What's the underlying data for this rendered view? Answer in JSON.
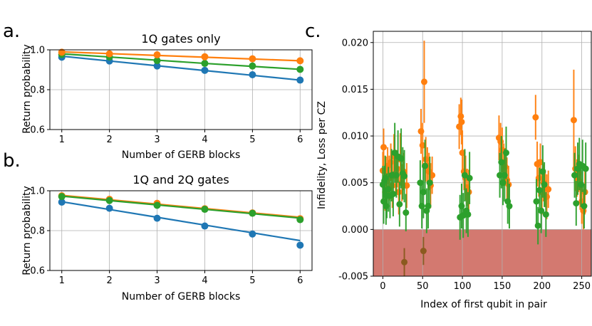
{
  "colors": {
    "blue": "#1f77b4",
    "orange": "#ff7f0e",
    "green": "#2ca02c",
    "grid": "#b0b0b0",
    "negative_region": "#c8574c",
    "neg_point": "#8b5a1f"
  },
  "chart_data": [
    {
      "id": "a",
      "letter": "a.",
      "type": "line",
      "title": "1Q gates only",
      "xlabel": "Number of GERB blocks",
      "ylabel": "Return probability",
      "x": [
        1,
        2,
        3,
        4,
        5,
        6
      ],
      "xlim": [
        0.75,
        6.25
      ],
      "ylim": [
        0.6,
        1.0
      ],
      "xticks": [
        "1",
        "2",
        "3",
        "4",
        "5",
        "6"
      ],
      "yticks": [
        "0.6",
        "0.8",
        "1.0"
      ],
      "grid": true,
      "series": [
        {
          "color": "#1f77b4",
          "points": [
            0.963,
            0.944,
            0.919,
            0.897,
            0.875,
            0.848
          ],
          "fit": [
            0.968,
            0.944,
            0.92,
            0.896,
            0.872,
            0.848
          ]
        },
        {
          "color": "#2ca02c",
          "points": [
            0.977,
            0.964,
            0.946,
            0.932,
            0.919,
            0.902
          ],
          "fit": [
            0.98,
            0.964,
            0.948,
            0.932,
            0.917,
            0.902
          ]
        },
        {
          "color": "#ff7f0e",
          "points": [
            0.988,
            0.98,
            0.975,
            0.965,
            0.955,
            0.945
          ],
          "fit": [
            0.99,
            0.981,
            0.972,
            0.963,
            0.954,
            0.945
          ]
        }
      ]
    },
    {
      "id": "b",
      "letter": "b.",
      "type": "line",
      "title": "1Q and 2Q gates",
      "xlabel": "Number of GERB blocks",
      "ylabel": "Return probability",
      "x": [
        1,
        2,
        3,
        4,
        5,
        6
      ],
      "xlim": [
        0.75,
        6.25
      ],
      "ylim": [
        0.6,
        1.0
      ],
      "xticks": [
        "1",
        "2",
        "3",
        "4",
        "5",
        "6"
      ],
      "yticks": [
        "0.6",
        "0.8",
        "1.0"
      ],
      "grid": true,
      "series": [
        {
          "color": "#1f77b4",
          "points": [
            0.943,
            0.912,
            0.862,
            0.823,
            0.783,
            0.727
          ],
          "fit": [
            0.945,
            0.906,
            0.867,
            0.828,
            0.789,
            0.75
          ]
        },
        {
          "color": "#ff7f0e",
          "points": [
            0.975,
            0.957,
            0.937,
            0.91,
            0.889,
            0.86
          ],
          "fit": [
            0.977,
            0.955,
            0.933,
            0.911,
            0.889,
            0.867
          ]
        },
        {
          "color": "#2ca02c",
          "points": [
            0.971,
            0.951,
            0.927,
            0.907,
            0.887,
            0.855
          ],
          "fit": [
            0.973,
            0.951,
            0.929,
            0.907,
            0.885,
            0.863
          ]
        }
      ]
    },
    {
      "id": "c",
      "letter": "c.",
      "type": "scatter",
      "title": "",
      "xlabel": "Index of first qubit in pair",
      "ylabel": "Infidelity, Loss per CZ",
      "xlim": [
        -12,
        262
      ],
      "ylim": [
        -0.005,
        0.0212
      ],
      "xticks": [
        0,
        50,
        100,
        150,
        200,
        250
      ],
      "yticks": [
        "0.020",
        "0.015",
        "0.010",
        "0.005",
        "0.000",
        "-0.005"
      ],
      "ytick_values": [
        0.02,
        0.015,
        0.01,
        0.005,
        0.0,
        -0.005
      ],
      "negative_region": [
        -0.005,
        0.0
      ],
      "grid": true,
      "series": [
        {
          "color": "#ff7f0e",
          "points": [
            {
              "x": 0,
              "y": 0.0063,
              "e": 0.002
            },
            {
              "x": 1,
              "y": 0.0088,
              "e": 0.002
            },
            {
              "x": 2,
              "y": 0.005,
              "e": 0.0016
            },
            {
              "x": 3,
              "y": 0.004,
              "e": 0.002
            },
            {
              "x": 4,
              "y": 0.0062,
              "e": 0.0016
            },
            {
              "x": 5,
              "y": 0.0044,
              "e": 0.002
            },
            {
              "x": 6,
              "y": 0.0068,
              "e": 0.002
            },
            {
              "x": 8,
              "y": 0.0055,
              "e": 0.0024
            },
            {
              "x": 10,
              "y": 0.0072,
              "e": 0.002
            },
            {
              "x": 12,
              "y": 0.0047,
              "e": 0.0024
            },
            {
              "x": 14,
              "y": 0.0078,
              "e": 0.0024
            },
            {
              "x": 16,
              "y": 0.0058,
              "e": 0.002
            },
            {
              "x": 18,
              "y": 0.0065,
              "e": 0.002
            },
            {
              "x": 20,
              "y": 0.004,
              "e": 0.0024
            },
            {
              "x": 22,
              "y": 0.0075,
              "e": 0.0028
            },
            {
              "x": 24,
              "y": 0.005,
              "e": 0.002
            },
            {
              "x": 26,
              "y": 0.0062,
              "e": 0.002
            },
            {
              "x": 30,
              "y": 0.0047,
              "e": 0.0024
            },
            {
              "x": 48,
              "y": 0.0105,
              "e": 0.0024
            },
            {
              "x": 50,
              "y": 0.009,
              "e": 0.0024
            },
            {
              "x": 52,
              "y": 0.0158,
              "e": 0.0044
            },
            {
              "x": 54,
              "y": 0.0075,
              "e": 0.0024
            },
            {
              "x": 56,
              "y": 0.0068,
              "e": 0.002
            },
            {
              "x": 58,
              "y": 0.0062,
              "e": 0.002
            },
            {
              "x": 60,
              "y": 0.0047,
              "e": 0.0024
            },
            {
              "x": 62,
              "y": 0.0058,
              "e": 0.002
            },
            {
              "x": 96,
              "y": 0.011,
              "e": 0.0024
            },
            {
              "x": 98,
              "y": 0.0121,
              "e": 0.002
            },
            {
              "x": 99,
              "y": 0.0115,
              "e": 0.0024
            },
            {
              "x": 100,
              "y": 0.0082,
              "e": 0.0024
            },
            {
              "x": 102,
              "y": 0.0062,
              "e": 0.002
            },
            {
              "x": 104,
              "y": 0.0055,
              "e": 0.0024
            },
            {
              "x": 106,
              "y": 0.0045,
              "e": 0.002
            },
            {
              "x": 108,
              "y": 0.004,
              "e": 0.0024
            },
            {
              "x": 146,
              "y": 0.0098,
              "e": 0.0024
            },
            {
              "x": 148,
              "y": 0.0094,
              "e": 0.002
            },
            {
              "x": 150,
              "y": 0.0085,
              "e": 0.0024
            },
            {
              "x": 152,
              "y": 0.0072,
              "e": 0.002
            },
            {
              "x": 154,
              "y": 0.0067,
              "e": 0.002
            },
            {
              "x": 156,
              "y": 0.0053,
              "e": 0.0024
            },
            {
              "x": 158,
              "y": 0.0048,
              "e": 0.002
            },
            {
              "x": 192,
              "y": 0.012,
              "e": 0.0024
            },
            {
              "x": 194,
              "y": 0.007,
              "e": 0.0024
            },
            {
              "x": 196,
              "y": 0.0055,
              "e": 0.002
            },
            {
              "x": 198,
              "y": 0.0072,
              "e": 0.002
            },
            {
              "x": 200,
              "y": 0.004,
              "e": 0.0024
            },
            {
              "x": 202,
              "y": 0.005,
              "e": 0.002
            },
            {
              "x": 204,
              "y": 0.0044,
              "e": 0.002
            },
            {
              "x": 206,
              "y": 0.0035,
              "e": 0.0024
            },
            {
              "x": 208,
              "y": 0.0043,
              "e": 0.002
            },
            {
              "x": 240,
              "y": 0.0117,
              "e": 0.0054
            },
            {
              "x": 242,
              "y": 0.0065,
              "e": 0.0024
            },
            {
              "x": 244,
              "y": 0.0055,
              "e": 0.002
            },
            {
              "x": 246,
              "y": 0.006,
              "e": 0.002
            },
            {
              "x": 248,
              "y": 0.0045,
              "e": 0.0024
            },
            {
              "x": 250,
              "y": 0.003,
              "e": 0.0024
            },
            {
              "x": 252,
              "y": 0.002,
              "e": 0.002
            },
            {
              "x": 254,
              "y": 0.004,
              "e": 0.0024
            }
          ]
        },
        {
          "color": "#2ca02c",
          "points": [
            {
              "x": 0,
              "y": 0.0048,
              "e": 0.002
            },
            {
              "x": 1,
              "y": 0.003,
              "e": 0.0024
            },
            {
              "x": 2,
              "y": 0.0052,
              "e": 0.0016
            },
            {
              "x": 3,
              "y": 0.0055,
              "e": 0.0024
            },
            {
              "x": 4,
              "y": 0.0025,
              "e": 0.002
            },
            {
              "x": 5,
              "y": 0.0036,
              "e": 0.0024
            },
            {
              "x": 7,
              "y": 0.0043,
              "e": 0.0024
            },
            {
              "x": 9,
              "y": 0.0036,
              "e": 0.0024
            },
            {
              "x": 11,
              "y": 0.0058,
              "e": 0.0028
            },
            {
              "x": 13,
              "y": 0.0038,
              "e": 0.0024
            },
            {
              "x": 15,
              "y": 0.0082,
              "e": 0.0032
            },
            {
              "x": 17,
              "y": 0.0058,
              "e": 0.0024
            },
            {
              "x": 19,
              "y": 0.0078,
              "e": 0.0028
            },
            {
              "x": 21,
              "y": 0.0027,
              "e": 0.0024
            },
            {
              "x": 23,
              "y": 0.0076,
              "e": 0.0032
            },
            {
              "x": 25,
              "y": 0.006,
              "e": 0.0028
            },
            {
              "x": 27,
              "y": 0.0057,
              "e": 0.0028
            },
            {
              "x": 29,
              "y": 0.0018,
              "e": 0.002
            },
            {
              "x": 47,
              "y": 0.005,
              "e": 0.0024
            },
            {
              "x": 49,
              "y": 0.0025,
              "e": 0.0024
            },
            {
              "x": 51,
              "y": 0.004,
              "e": 0.0028
            },
            {
              "x": 53,
              "y": 0.0068,
              "e": 0.0028
            },
            {
              "x": 55,
              "y": 0.002,
              "e": 0.0024
            },
            {
              "x": 57,
              "y": 0.0025,
              "e": 0.0024
            },
            {
              "x": 59,
              "y": 0.005,
              "e": 0.0028
            },
            {
              "x": 97,
              "y": 0.0013,
              "e": 0.0024
            },
            {
              "x": 99,
              "y": 0.0025,
              "e": 0.0024
            },
            {
              "x": 101,
              "y": 0.0015,
              "e": 0.0024
            },
            {
              "x": 103,
              "y": 0.0058,
              "e": 0.0028
            },
            {
              "x": 105,
              "y": 0.002,
              "e": 0.0024
            },
            {
              "x": 107,
              "y": 0.0016,
              "e": 0.0024
            },
            {
              "x": 109,
              "y": 0.0055,
              "e": 0.0028
            },
            {
              "x": 147,
              "y": 0.0058,
              "e": 0.0024
            },
            {
              "x": 149,
              "y": 0.0072,
              "e": 0.0028
            },
            {
              "x": 151,
              "y": 0.005,
              "e": 0.0024
            },
            {
              "x": 153,
              "y": 0.0058,
              "e": 0.0028
            },
            {
              "x": 155,
              "y": 0.0082,
              "e": 0.0028
            },
            {
              "x": 157,
              "y": 0.003,
              "e": 0.0024
            },
            {
              "x": 159,
              "y": 0.0025,
              "e": 0.0024
            },
            {
              "x": 193,
              "y": 0.003,
              "e": 0.0024
            },
            {
              "x": 195,
              "y": 0.0004,
              "e": 0.002
            },
            {
              "x": 197,
              "y": 0.0042,
              "e": 0.0024
            },
            {
              "x": 199,
              "y": 0.002,
              "e": 0.0024
            },
            {
              "x": 201,
              "y": 0.0062,
              "e": 0.0028
            },
            {
              "x": 203,
              "y": 0.0048,
              "e": 0.0024
            },
            {
              "x": 205,
              "y": 0.0016,
              "e": 0.0024
            },
            {
              "x": 241,
              "y": 0.0058,
              "e": 0.0024
            },
            {
              "x": 243,
              "y": 0.0028,
              "e": 0.0024
            },
            {
              "x": 245,
              "y": 0.0065,
              "e": 0.0028
            },
            {
              "x": 247,
              "y": 0.007,
              "e": 0.0028
            },
            {
              "x": 249,
              "y": 0.0048,
              "e": 0.0024
            },
            {
              "x": 251,
              "y": 0.0068,
              "e": 0.0028
            },
            {
              "x": 253,
              "y": 0.0025,
              "e": 0.0024
            },
            {
              "x": 255,
              "y": 0.0065,
              "e": 0.0028
            }
          ]
        },
        {
          "color": "#8b5a1f",
          "points": [
            {
              "x": 27,
              "y": -0.0035,
              "e": 0.0015
            },
            {
              "x": 51,
              "y": -0.0023,
              "e": 0.0015
            }
          ]
        }
      ]
    }
  ]
}
